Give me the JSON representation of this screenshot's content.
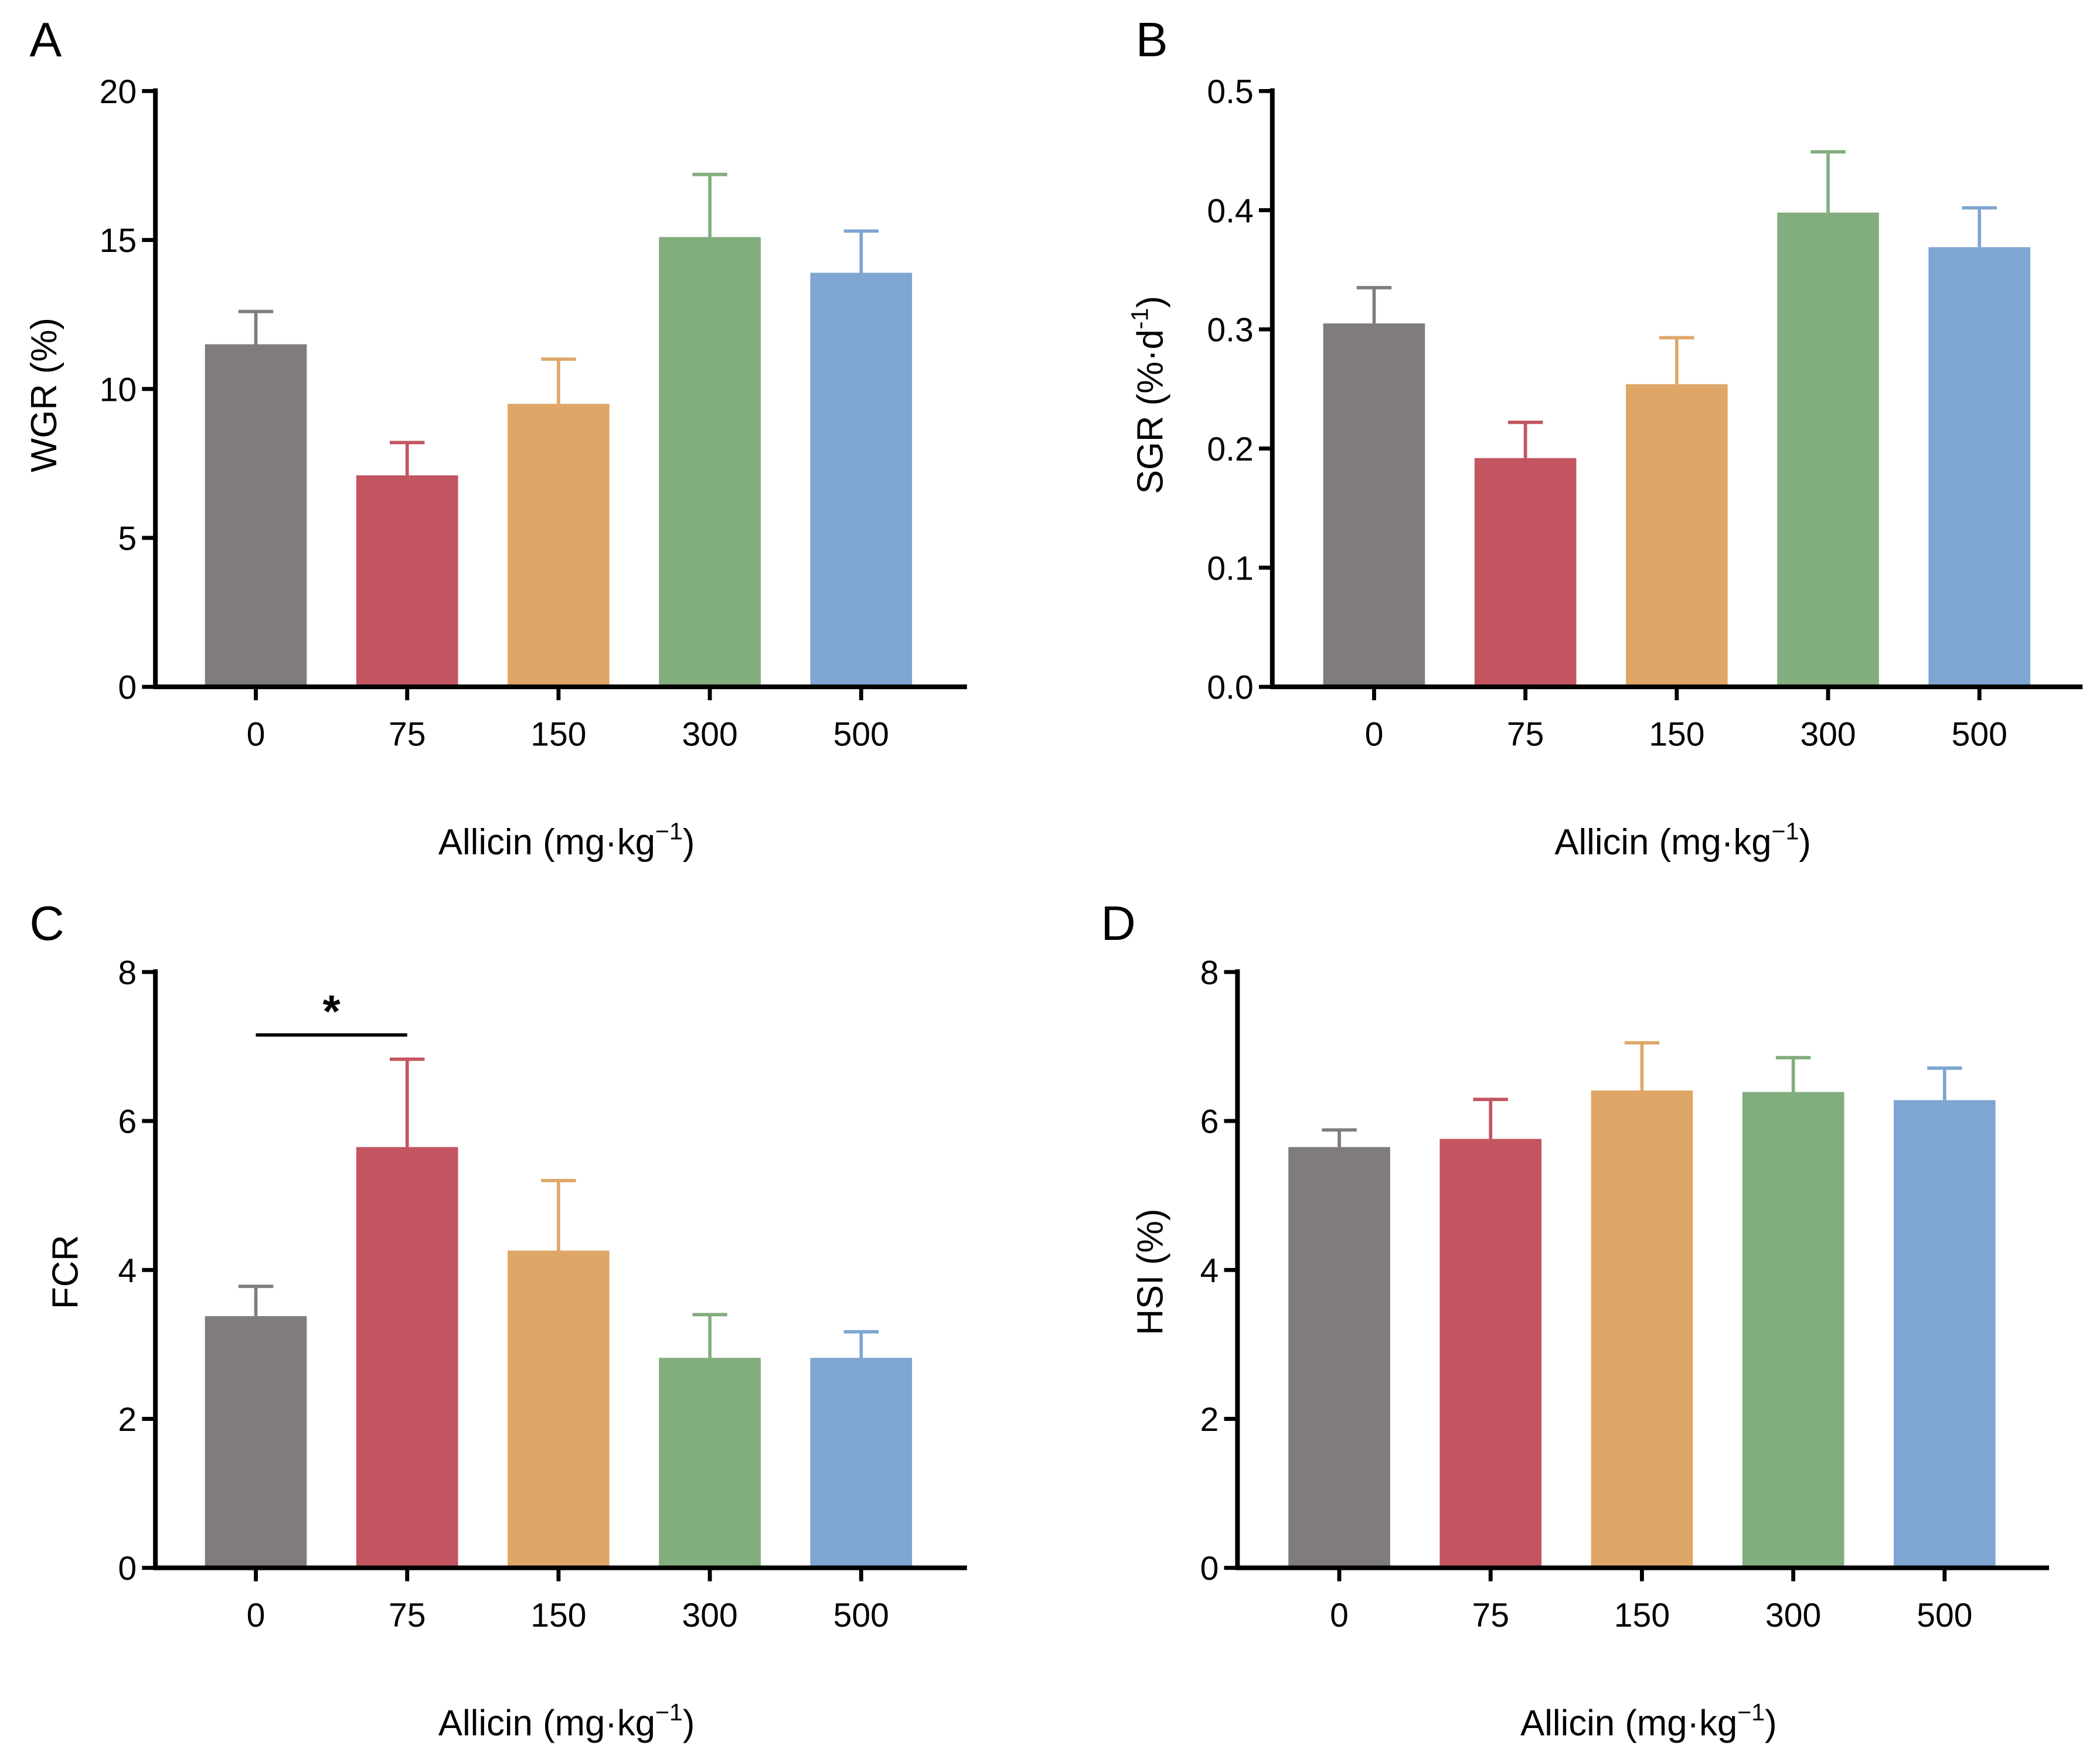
{
  "chart_data": [
    {
      "type": "bar",
      "panel": "A",
      "categories": [
        "0",
        "75",
        "150",
        "300",
        "500"
      ],
      "values": [
        11.5,
        7.1,
        9.5,
        15.1,
        13.9
      ],
      "errors_upper": [
        12.6,
        8.2,
        11.0,
        17.2,
        15.3
      ],
      "ylabel": "WGR (%)",
      "ylabel_sup": "",
      "ylabel_end": "",
      "xlabel": "Allicin (mg·kg",
      "xlabel_sup": "−1",
      "xlabel_end": ")",
      "ylim": [
        0,
        20
      ],
      "yticks": [
        "0",
        "5",
        "10",
        "15",
        "20"
      ],
      "ytick_values": [
        0,
        5,
        10,
        15,
        20
      ],
      "significance": []
    },
    {
      "type": "bar",
      "panel": "B",
      "categories": [
        "0",
        "75",
        "150",
        "300",
        "500"
      ],
      "values": [
        0.305,
        0.192,
        0.254,
        0.398,
        0.369
      ],
      "errors_upper": [
        0.335,
        0.222,
        0.293,
        0.449,
        0.402
      ],
      "ylabel": "SGR (%·d",
      "ylabel_sup": "-1",
      "ylabel_end": ")",
      "xlabel": "Allicin (mg·kg",
      "xlabel_sup": "−1",
      "xlabel_end": ")",
      "ylim": [
        0,
        0.5
      ],
      "yticks": [
        "0.0",
        "0.1",
        "0.2",
        "0.3",
        "0.4",
        "0.5"
      ],
      "ytick_values": [
        0,
        0.1,
        0.2,
        0.3,
        0.4,
        0.5
      ],
      "significance": []
    },
    {
      "type": "bar",
      "panel": "C",
      "categories": [
        "0",
        "75",
        "150",
        "300",
        "500"
      ],
      "values": [
        3.38,
        5.65,
        4.26,
        2.82,
        2.82
      ],
      "errors_upper": [
        3.78,
        6.83,
        5.2,
        3.4,
        3.17
      ],
      "ylabel": "FCR",
      "ylabel_sup": "",
      "ylabel_end": "",
      "xlabel": "Allicin (mg·kg",
      "xlabel_sup": "−1",
      "xlabel_end": ")",
      "ylim": [
        0,
        8
      ],
      "yticks": [
        "0",
        "2",
        "4",
        "6",
        "8"
      ],
      "ytick_values": [
        0,
        2,
        4,
        6,
        8
      ],
      "significance": [
        {
          "from": 0,
          "to": 1,
          "label": "*"
        }
      ]
    },
    {
      "type": "bar",
      "panel": "D",
      "categories": [
        "0",
        "75",
        "150",
        "300",
        "500"
      ],
      "values": [
        5.65,
        5.76,
        6.41,
        6.39,
        6.28
      ],
      "errors_upper": [
        5.88,
        6.29,
        7.05,
        6.85,
        6.71
      ],
      "ylabel": "HSI (%)",
      "ylabel_sup": "",
      "ylabel_end": "",
      "xlabel": "Allicin (mg·kg",
      "xlabel_sup": "−1",
      "xlabel_end": ")",
      "ylim": [
        0,
        8
      ],
      "yticks": [
        "0",
        "2",
        "4",
        "6",
        "8"
      ],
      "ytick_values": [
        0,
        2,
        4,
        6,
        8
      ],
      "significance": []
    }
  ],
  "colors": [
    "#807c7d",
    "#c25560",
    "#dea768",
    "#82ad7e",
    "#7fa5d2"
  ]
}
